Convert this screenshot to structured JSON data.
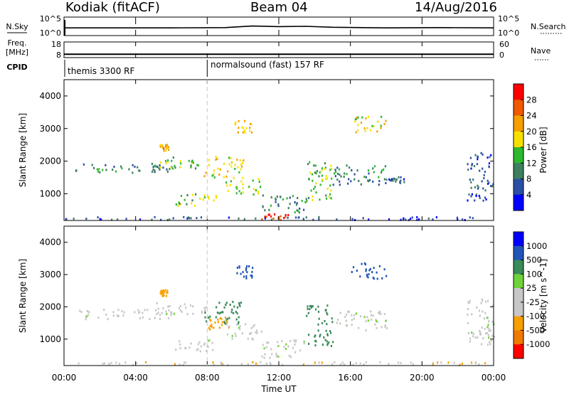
{
  "header": {
    "site": "Kodiak (fitACF)",
    "beam": "Beam 04",
    "date": "14/Aug/2016"
  },
  "chart_data": [
    {
      "type": "line",
      "panel": "noise",
      "left_label": "N.Sky",
      "right_label": "N.Search",
      "left_ticks": [
        "10^5",
        "10^0"
      ],
      "right_ticks": [
        "10^5",
        "10^0"
      ],
      "series": [
        {
          "x": [
            0,
            3,
            6,
            9,
            10.5,
            12,
            13.5,
            15,
            18,
            21,
            24
          ],
          "values": [
            2.0,
            2.0,
            2.0,
            2.1,
            2.6,
            2.4,
            2.5,
            2.2,
            2.0,
            2.1,
            2.0
          ]
        }
      ]
    },
    {
      "type": "line",
      "panel": "frequency",
      "left_label": "Freq.",
      "left_unit": "[MHz]",
      "right_label": "Nave",
      "left_ticks": [
        18,
        8
      ],
      "right_ticks": [
        60,
        0
      ],
      "series": [
        {
          "x": [
            0,
            24
          ],
          "values": [
            9.5,
            9.5
          ]
        }
      ]
    },
    {
      "type": "table",
      "panel": "cpid",
      "label": "CPID",
      "modes": [
        {
          "start": 0,
          "end": 8,
          "text": "themis 3300 RF"
        },
        {
          "start": 8,
          "end": 24,
          "text": "normalsound (fast) 157 RF"
        }
      ]
    },
    {
      "type": "heatmap",
      "panel": "power",
      "ylabel": "Slant Range [km]",
      "ylim": [
        180,
        4500
      ],
      "yticks": [
        1000,
        2000,
        3000,
        4000
      ],
      "colorbar_label": "Power [dB]",
      "colorbar_ticks": [
        28,
        24,
        20,
        16,
        12,
        8,
        4
      ],
      "colorbar_range": [
        0,
        30
      ],
      "regions": [
        {
          "t0": 0.6,
          "t1": 6.0,
          "r0": 1650,
          "r1": 1950,
          "v": 9
        },
        {
          "t0": 5.0,
          "t1": 8.0,
          "r0": 1800,
          "r1": 2150,
          "v": 13
        },
        {
          "t0": 7.8,
          "t1": 10.0,
          "r0": 1500,
          "r1": 2200,
          "v": 17
        },
        {
          "t0": 6.2,
          "t1": 8.5,
          "r0": 650,
          "r1": 1050,
          "v": 14
        },
        {
          "t0": 9.0,
          "t1": 11.0,
          "r0": 1000,
          "r1": 1500,
          "v": 15
        },
        {
          "t0": 11.0,
          "t1": 13.5,
          "r0": 450,
          "r1": 1000,
          "v": 10
        },
        {
          "t0": 11.0,
          "t1": 12.5,
          "r0": 180,
          "r1": 400,
          "v": 26
        },
        {
          "t0": 13.5,
          "t1": 15.0,
          "r0": 800,
          "r1": 2100,
          "v": 14
        },
        {
          "t0": 15.0,
          "t1": 18.0,
          "r0": 1300,
          "r1": 1900,
          "v": 9
        },
        {
          "t0": 17.8,
          "t1": 19.0,
          "r0": 1350,
          "r1": 1550,
          "v": 7
        },
        {
          "t0": 0.0,
          "t1": 24.0,
          "r0": 180,
          "r1": 320,
          "v": 6
        },
        {
          "t0": 9.5,
          "t1": 10.5,
          "r0": 2900,
          "r1": 3300,
          "v": 19
        },
        {
          "t0": 16.0,
          "t1": 18.0,
          "r0": 2900,
          "r1": 3400,
          "v": 17
        },
        {
          "t0": 5.3,
          "t1": 5.8,
          "r0": 2350,
          "r1": 2550,
          "v": 20
        },
        {
          "t0": 22.5,
          "t1": 24.0,
          "r0": 800,
          "r1": 2300,
          "v": 6
        }
      ]
    },
    {
      "type": "heatmap",
      "panel": "velocity",
      "ylabel": "Slant Range [km]",
      "ylim": [
        180,
        4500
      ],
      "yticks": [
        1000,
        2000,
        3000,
        4000
      ],
      "xlabel": "Time UT",
      "xticks": [
        "00:00",
        "04:00",
        "08:00",
        "12:00",
        "16:00",
        "20:00",
        "00:00"
      ],
      "colorbar_label": "Velocity [m s^-1]",
      "colorbar_ticks": [
        "1000",
        "500",
        "100",
        "25",
        "-25",
        "-100",
        "-500",
        "-1000"
      ],
      "regions": [
        {
          "t0": 0.6,
          "t1": 6.0,
          "r0": 1650,
          "r1": 1950,
          "v": 0
        },
        {
          "t0": 5.0,
          "t1": 8.0,
          "r0": 1800,
          "r1": 2150,
          "v": 0
        },
        {
          "t0": 7.8,
          "t1": 10.0,
          "r0": 1500,
          "r1": 2200,
          "v": 150
        },
        {
          "t0": 8.0,
          "t1": 9.2,
          "r0": 1300,
          "r1": 1700,
          "v": -300
        },
        {
          "t0": 6.2,
          "t1": 8.5,
          "r0": 650,
          "r1": 1050,
          "v": 0
        },
        {
          "t0": 9.0,
          "t1": 11.0,
          "r0": 1000,
          "r1": 1500,
          "v": 0
        },
        {
          "t0": 11.0,
          "t1": 13.5,
          "r0": 450,
          "r1": 1000,
          "v": 0
        },
        {
          "t0": 13.5,
          "t1": 15.0,
          "r0": 800,
          "r1": 2100,
          "v": 150
        },
        {
          "t0": 15.0,
          "t1": 18.0,
          "r0": 1300,
          "r1": 1900,
          "v": 0
        },
        {
          "t0": 0.0,
          "t1": 24.0,
          "r0": 180,
          "r1": 320,
          "v": -80
        },
        {
          "t0": 9.5,
          "t1": 10.5,
          "r0": 2900,
          "r1": 3300,
          "v": 800
        },
        {
          "t0": 16.0,
          "t1": 18.0,
          "r0": 2900,
          "r1": 3400,
          "v": 600
        },
        {
          "t0": 5.3,
          "t1": 5.8,
          "r0": 2350,
          "r1": 2550,
          "v": -200
        },
        {
          "t0": 22.5,
          "t1": 24.0,
          "r0": 800,
          "r1": 2300,
          "v": 0
        }
      ]
    }
  ],
  "colors": {
    "power_scale": [
      "#0000ff",
      "#2b4fa5",
      "#3d7f5e",
      "#2eb82e",
      "#f7e000",
      "#f5a000",
      "#f05a00",
      "#ff0000"
    ],
    "velocity_scale": [
      "#ff0000",
      "#f07a00",
      "#f5a000",
      "#c7c7c7",
      "#c7c7c7",
      "#6fd23a",
      "#3a8a5a",
      "#2255b8",
      "#0000ff"
    ],
    "marker_line": "#c8c8c8"
  }
}
